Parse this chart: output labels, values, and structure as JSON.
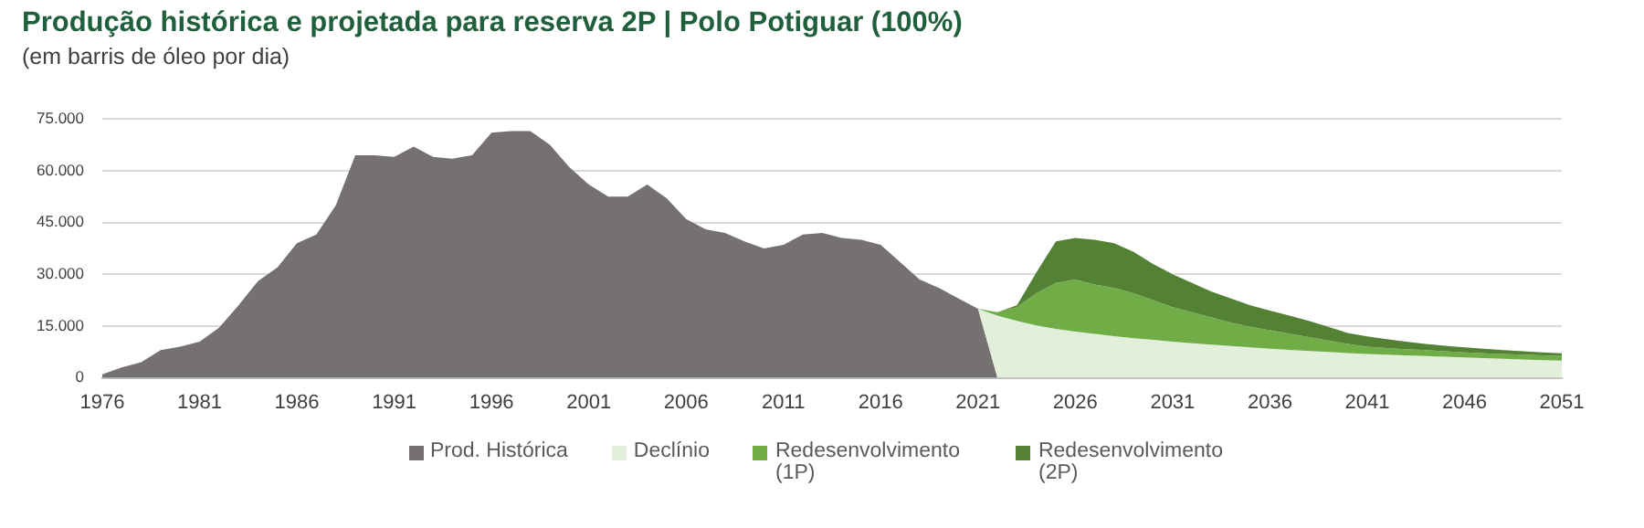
{
  "chart_data": {
    "type": "area",
    "title": "Produção histórica e projetada para reserva 2P | Polo Potiguar (100%)",
    "subtitle": "(em barris de óleo por dia)",
    "stacked": true,
    "grid": "y",
    "legend": "bottom",
    "xlim": [
      1976,
      2051
    ],
    "xticks": [
      1976,
      1981,
      1986,
      1991,
      1996,
      2001,
      2006,
      2011,
      2016,
      2021,
      2026,
      2031,
      2036,
      2041,
      2046,
      2051
    ],
    "ylim": [
      0,
      75000
    ],
    "yticks": [
      {
        "value": 0,
        "label": "0"
      },
      {
        "value": 15000,
        "label": "15.000"
      },
      {
        "value": 30000,
        "label": "30.000"
      },
      {
        "value": 45000,
        "label": "45.000"
      },
      {
        "value": 60000,
        "label": "60.000"
      },
      {
        "value": 75000,
        "label": "75.000"
      }
    ],
    "x": [
      1976,
      1977,
      1978,
      1979,
      1980,
      1981,
      1982,
      1983,
      1984,
      1985,
      1986,
      1987,
      1988,
      1989,
      1990,
      1991,
      1992,
      1993,
      1994,
      1995,
      1996,
      1997,
      1998,
      1999,
      2000,
      2001,
      2002,
      2003,
      2004,
      2005,
      2006,
      2007,
      2008,
      2009,
      2010,
      2011,
      2012,
      2013,
      2014,
      2015,
      2016,
      2017,
      2018,
      2019,
      2020,
      2021,
      2022,
      2023,
      2024,
      2025,
      2026,
      2027,
      2028,
      2029,
      2030,
      2031,
      2032,
      2033,
      2034,
      2035,
      2036,
      2037,
      2038,
      2039,
      2040,
      2041,
      2042,
      2043,
      2044,
      2045,
      2046,
      2047,
      2048,
      2049,
      2050,
      2051
    ],
    "series": [
      {
        "name": "Prod. Histórica",
        "color": "#767171",
        "values": [
          1000,
          3000,
          4500,
          8000,
          9000,
          10500,
          14500,
          21000,
          28000,
          32000,
          39000,
          41500,
          50000,
          64500,
          64500,
          64000,
          67000,
          64000,
          63500,
          64500,
          71000,
          71500,
          71500,
          67500,
          61000,
          56000,
          52500,
          52500,
          56000,
          52000,
          46000,
          43000,
          42000,
          39500,
          37500,
          38500,
          41500,
          42000,
          40500,
          40000,
          38500,
          33500,
          28500,
          26000,
          23000,
          20000,
          0,
          null,
          null,
          null,
          null,
          null,
          null,
          null,
          null,
          null,
          null,
          null,
          null,
          null,
          null,
          null,
          null,
          null,
          null,
          null,
          null,
          null,
          null,
          null,
          null,
          null,
          null,
          null,
          null,
          null
        ]
      },
      {
        "name": "Declínio",
        "color": "#e2efda",
        "values": [
          null,
          null,
          null,
          null,
          null,
          null,
          null,
          null,
          null,
          null,
          null,
          null,
          null,
          null,
          null,
          null,
          null,
          null,
          null,
          null,
          null,
          null,
          null,
          null,
          null,
          null,
          null,
          null,
          null,
          null,
          null,
          null,
          null,
          null,
          null,
          null,
          null,
          null,
          null,
          null,
          null,
          null,
          null,
          null,
          null,
          0,
          18000,
          16500,
          15200,
          14200,
          13400,
          12700,
          12100,
          11500,
          11000,
          10500,
          10000,
          9600,
          9200,
          8800,
          8400,
          8100,
          7800,
          7500,
          7200,
          6900,
          6700,
          6500,
          6300,
          6100,
          5900,
          5700,
          5500,
          5300,
          5100,
          5000
        ]
      },
      {
        "name": "Redesenvolvimento (1P)",
        "color": "#70ad47",
        "values": [
          null,
          null,
          null,
          null,
          null,
          null,
          null,
          null,
          null,
          null,
          null,
          null,
          null,
          null,
          null,
          null,
          null,
          null,
          null,
          null,
          null,
          null,
          null,
          null,
          null,
          null,
          null,
          null,
          null,
          null,
          null,
          null,
          null,
          null,
          null,
          null,
          null,
          null,
          null,
          null,
          null,
          null,
          null,
          null,
          null,
          0,
          1000,
          4000,
          9300,
          13300,
          15100,
          14300,
          13900,
          13000,
          11500,
          10000,
          9000,
          7900,
          6800,
          6000,
          5400,
          4700,
          4000,
          3300,
          2600,
          2100,
          1900,
          1800,
          1700,
          1600,
          1500,
          1400,
          1400,
          1400,
          1400,
          1300
        ]
      },
      {
        "name": "Redesenvolvimento (2P)",
        "color": "#548235",
        "values": [
          null,
          null,
          null,
          null,
          null,
          null,
          null,
          null,
          null,
          null,
          null,
          null,
          null,
          null,
          null,
          null,
          null,
          null,
          null,
          null,
          null,
          null,
          null,
          null,
          null,
          null,
          null,
          null,
          null,
          null,
          null,
          null,
          null,
          null,
          null,
          null,
          null,
          null,
          null,
          null,
          null,
          null,
          null,
          null,
          null,
          null,
          0,
          500,
          6000,
          12000,
          12000,
          13000,
          13000,
          12000,
          10500,
          9500,
          8500,
          7500,
          7000,
          6200,
          5700,
          5200,
          4700,
          4000,
          3200,
          3000,
          2600,
          2200,
          1800,
          1600,
          1400,
          1300,
          1100,
          1000,
          900,
          800
        ]
      }
    ]
  }
}
